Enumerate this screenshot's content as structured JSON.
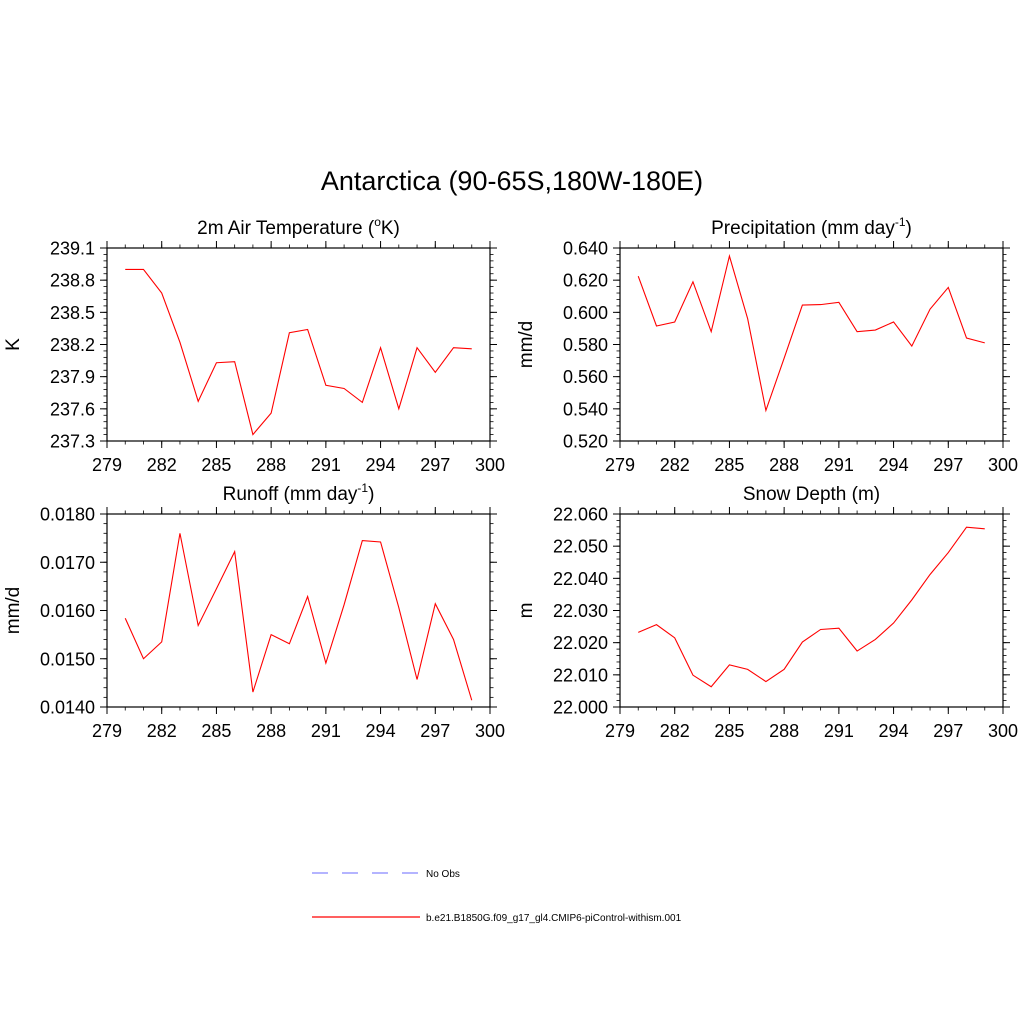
{
  "figure": {
    "title": "Antarctica (90-65S,180W-180E)",
    "line_color": "#ff0000",
    "obs_color": "#8888ff"
  },
  "legend": {
    "entries": [
      {
        "label": "No Obs",
        "style": "dashed",
        "color": "#8888ff"
      },
      {
        "label": "b.e21.B1850G.f09_g17_gl4.CMIP6-piControl-withism.001",
        "style": "solid",
        "color": "#ff0000"
      }
    ]
  },
  "chart_data": [
    {
      "type": "line",
      "title": "2m Air Temperature (",
      "title_sup": "o",
      "title_after": "K)",
      "ylabel": "K",
      "xlim": [
        279,
        300
      ],
      "ylim": [
        237.3,
        239.1
      ],
      "xticks": [
        "279",
        "282",
        "285",
        "288",
        "291",
        "294",
        "297",
        "300"
      ],
      "yticks": [
        "237.3",
        "237.6",
        "237.9",
        "238.2",
        "238.5",
        "238.8",
        "239.1"
      ],
      "x": [
        280,
        281,
        282,
        283,
        284,
        285,
        286,
        287,
        288,
        289,
        290,
        291,
        292,
        293,
        294,
        295,
        296,
        297,
        298,
        299
      ],
      "series": [
        {
          "values": [
            238.9,
            238.9,
            238.68,
            238.22,
            237.67,
            238.03,
            238.04,
            237.36,
            237.56,
            238.31,
            238.34,
            237.82,
            237.79,
            237.66,
            238.17,
            237.6,
            238.17,
            237.94,
            238.17,
            238.16
          ]
        }
      ]
    },
    {
      "type": "line",
      "title": "Precipitation (mm day",
      "title_sup": "-1",
      "title_after": ")",
      "ylabel": "mm/d",
      "xlim": [
        279,
        300
      ],
      "ylim": [
        0.52,
        0.64
      ],
      "xticks": [
        "279",
        "282",
        "285",
        "288",
        "291",
        "294",
        "297",
        "300"
      ],
      "yticks": [
        "0.520",
        "0.540",
        "0.560",
        "0.580",
        "0.600",
        "0.620",
        "0.640"
      ],
      "x": [
        280,
        281,
        282,
        283,
        284,
        285,
        286,
        287,
        288,
        289,
        290,
        291,
        292,
        293,
        294,
        295,
        296,
        297,
        298,
        299
      ],
      "series": [
        {
          "values": [
            0.6225,
            0.5915,
            0.594,
            0.619,
            0.588,
            0.635,
            0.596,
            0.539,
            0.5715,
            0.6045,
            0.6048,
            0.6062,
            0.588,
            0.589,
            0.594,
            0.579,
            0.602,
            0.6155,
            0.584,
            0.581
          ]
        }
      ]
    },
    {
      "type": "line",
      "title": "Runoff (mm day",
      "title_sup": "-1",
      "title_after": ")",
      "ylabel": "mm/d",
      "xlim": [
        279,
        300
      ],
      "ylim": [
        0.014,
        0.018
      ],
      "xticks": [
        "279",
        "282",
        "285",
        "288",
        "291",
        "294",
        "297",
        "300"
      ],
      "yticks": [
        "0.0140",
        "0.0150",
        "0.0160",
        "0.0170",
        "0.0180"
      ],
      "x": [
        280,
        281,
        282,
        283,
        284,
        285,
        286,
        287,
        288,
        289,
        290,
        291,
        292,
        293,
        294,
        295,
        296,
        297,
        298,
        299
      ],
      "series": [
        {
          "values": [
            0.01584,
            0.015,
            0.01535,
            0.0176,
            0.01569,
            0.01645,
            0.01722,
            0.01431,
            0.0155,
            0.01531,
            0.01629,
            0.01491,
            0.01612,
            0.01745,
            0.01742,
            0.01606,
            0.01457,
            0.01614,
            0.0154,
            0.01414
          ]
        }
      ]
    },
    {
      "type": "line",
      "title": "Snow Depth (m)",
      "title_sup": "",
      "title_after": "",
      "ylabel": "m",
      "xlim": [
        279,
        300
      ],
      "ylim": [
        22.0,
        22.06
      ],
      "xticks": [
        "279",
        "282",
        "285",
        "288",
        "291",
        "294",
        "297",
        "300"
      ],
      "yticks": [
        "22.000",
        "22.010",
        "22.020",
        "22.030",
        "22.040",
        "22.050",
        "22.060"
      ],
      "x": [
        280,
        281,
        282,
        283,
        284,
        285,
        286,
        287,
        288,
        289,
        290,
        291,
        292,
        293,
        294,
        295,
        296,
        297,
        298,
        299
      ],
      "series": [
        {
          "values": [
            22.0232,
            22.0256,
            22.0215,
            22.0099,
            22.0063,
            22.0131,
            22.0117,
            22.0079,
            22.0117,
            22.0202,
            22.0241,
            22.0245,
            22.0174,
            22.021,
            22.0261,
            22.0333,
            22.0412,
            22.048,
            22.0559,
            22.0554
          ]
        }
      ]
    }
  ]
}
